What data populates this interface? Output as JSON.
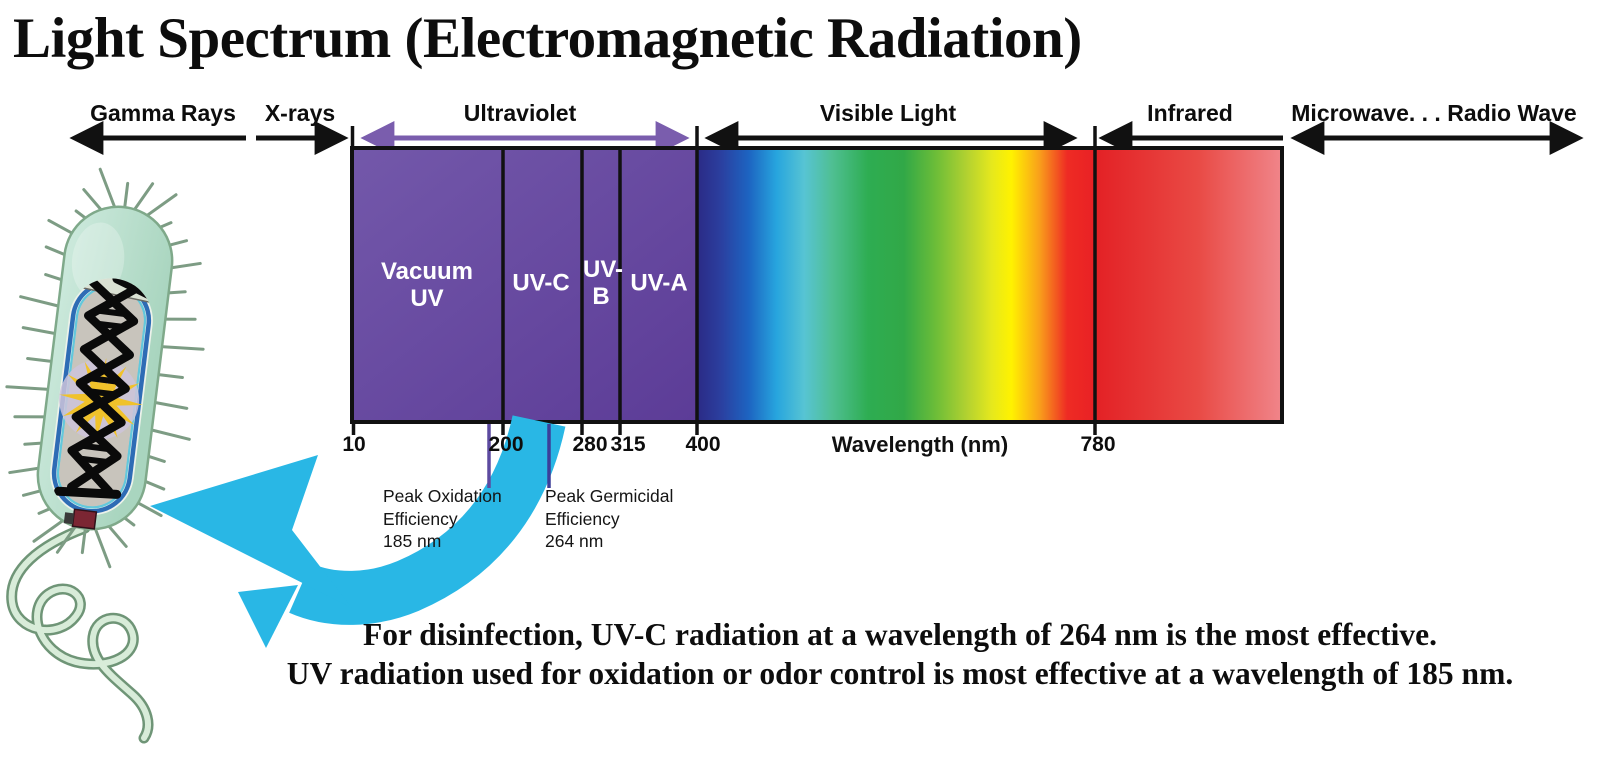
{
  "title": "Light Spectrum (Electromagnetic Radiation)",
  "bands": [
    {
      "label": "Gamma Rays",
      "arrow": "left"
    },
    {
      "label": "X-rays",
      "arrow": "right"
    },
    {
      "label": "Ultraviolet",
      "arrow": "double",
      "arrow_color": "purple"
    },
    {
      "label": "Visible Light",
      "arrow": "double"
    },
    {
      "label": "Infrared",
      "arrow": "left"
    },
    {
      "label": "Microwave. . . Radio Wave",
      "arrow": "double"
    }
  ],
  "spectrum": {
    "segments": [
      {
        "label": "Vacuum UV",
        "range_nm": "10-200"
      },
      {
        "label": "UV-C",
        "range_nm": "200-280"
      },
      {
        "label": "UV-B",
        "range_nm": "280-315"
      },
      {
        "label": "UV-A",
        "range_nm": "315-400"
      }
    ],
    "ticks": [
      {
        "value": "10"
      },
      {
        "value": "200"
      },
      {
        "value": "280"
      },
      {
        "value": "315"
      },
      {
        "value": "400"
      },
      {
        "value": "780"
      }
    ],
    "axis_label": "Wavelength (nm)"
  },
  "annotations": {
    "oxidation": {
      "line1": "Peak Oxidation",
      "line2": "Efficiency",
      "line3": "185 nm"
    },
    "germicidal": {
      "line1": "Peak Germicidal",
      "line2": "Efficiency",
      "line3": "264 nm"
    }
  },
  "footer": {
    "line1": "For disinfection, UV-C radiation at a wavelength of 264 nm is the most effective.",
    "line2": "UV radiation used for oxidation or odor control is most effective at a wavelength of 185 nm."
  },
  "colors": {
    "uv_block_start": "#7358aa",
    "uv_block_end": "#5c3c97",
    "uv_arrow": "#7a5dad",
    "cyan_arrow": "#29b7e5",
    "infrared_start": "#e32125",
    "infrared_end": "#f0858a",
    "marker_185_line": "#5c4aa0",
    "marker_264_line": "#3c3e99",
    "visible_gradient": [
      "#2b2a85",
      "#1d64c1",
      "#27a5de",
      "#57c4d3",
      "#2ead52",
      "#6cbd38",
      "#b4d230",
      "#fff200",
      "#f9a01b",
      "#ee2b24"
    ],
    "bacterium_capsule": "#c3e4d2",
    "dna": "#0a0a0a",
    "damage_star": "#f0c22b"
  }
}
